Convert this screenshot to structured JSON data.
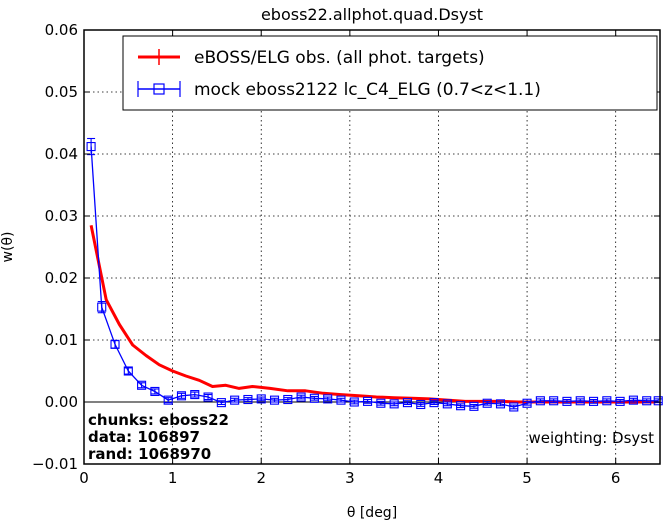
{
  "chart_data": {
    "type": "line",
    "title": "eboss22.allphot.quad.Dsyst",
    "xlabel": "θ [deg]",
    "ylabel": "w(θ)",
    "xlim": [
      0,
      6.5
    ],
    "ylim": [
      -0.01,
      0.06
    ],
    "grid": true,
    "legend_position": "top-right",
    "xticks": [
      "0",
      "1",
      "2",
      "3",
      "4",
      "5",
      "6"
    ],
    "yticks": [
      "−0.01",
      "0.00",
      "0.01",
      "0.02",
      "0.03",
      "0.04",
      "0.05",
      "0.06"
    ],
    "series": [
      {
        "name": "eBOSS/ELG obs. (all phot. targets)",
        "color": "#ff0000",
        "marker": "none",
        "x": [
          0.08,
          0.25,
          0.4,
          0.55,
          0.7,
          0.85,
          1.0,
          1.15,
          1.3,
          1.45,
          1.6,
          1.75,
          1.9,
          2.1,
          2.3,
          2.5,
          2.7,
          2.9,
          3.1,
          3.3,
          3.5,
          3.7,
          3.9,
          4.1,
          4.3,
          4.5,
          4.7,
          4.9,
          5.1,
          5.3,
          5.5,
          5.7,
          5.9,
          6.1,
          6.3,
          6.45
        ],
        "y": [
          0.0285,
          0.0165,
          0.0125,
          0.0092,
          0.0075,
          0.006,
          0.005,
          0.0042,
          0.0035,
          0.0025,
          0.0027,
          0.0022,
          0.0025,
          0.0022,
          0.0018,
          0.0018,
          0.0014,
          0.0012,
          0.001,
          0.0008,
          0.0007,
          0.0006,
          0.0005,
          0.0003,
          0.0001,
          0.0001,
          0.0001,
          0.0,
          0.0,
          0.0,
          0.0,
          0.0,
          0.0,
          0.0,
          0.0,
          0.0
        ]
      },
      {
        "name": "mock eboss2122 lc_C4_ELG (0.7<z<1.1)",
        "color": "#0000ff",
        "marker": "square",
        "x": [
          0.08,
          0.2,
          0.35,
          0.5,
          0.65,
          0.8,
          0.95,
          1.1,
          1.25,
          1.4,
          1.55,
          1.7,
          1.85,
          2.0,
          2.15,
          2.3,
          2.45,
          2.6,
          2.75,
          2.9,
          3.05,
          3.2,
          3.35,
          3.5,
          3.65,
          3.8,
          3.95,
          4.1,
          4.25,
          4.4,
          4.55,
          4.7,
          4.85,
          5.0,
          5.15,
          5.3,
          5.45,
          5.6,
          5.75,
          5.9,
          6.05,
          6.2,
          6.35,
          6.48
        ],
        "y": [
          0.0412,
          0.0153,
          0.0093,
          0.005,
          0.0027,
          0.0017,
          0.0003,
          0.001,
          0.0012,
          0.0008,
          -0.0001,
          0.0003,
          0.0004,
          0.0005,
          0.0003,
          0.0004,
          0.0008,
          0.0006,
          0.0005,
          0.0003,
          0.0,
          0.0001,
          -0.0002,
          -0.0003,
          -0.0001,
          -0.0004,
          -0.0001,
          -0.0003,
          -0.0006,
          -0.0007,
          -0.0002,
          -0.0003,
          -0.0008,
          -0.0002,
          0.0002,
          0.0002,
          0.0001,
          0.0002,
          0.0001,
          0.0002,
          0.0001,
          0.0003,
          0.0002,
          0.0002
        ],
        "yerr": [
          0.0013,
          0.0009,
          0.0006,
          0.0005,
          0.0004,
          0.0004,
          0.0004,
          0.0004,
          0.0004,
          0.0004,
          0.0003,
          0.0003,
          0.0003,
          0.0003,
          0.0003,
          0.0003,
          0.0003,
          0.0003,
          0.0003,
          0.0003,
          0.0003,
          0.0003,
          0.0003,
          0.0003,
          0.0003,
          0.0003,
          0.0003,
          0.0003,
          0.0003,
          0.0003,
          0.0003,
          0.0003,
          0.0003,
          0.0003,
          0.0003,
          0.0003,
          0.0003,
          0.0003,
          0.0003,
          0.0003,
          0.0003,
          0.0003,
          0.0003,
          0.0003
        ]
      }
    ],
    "annotations": {
      "chunks": "chunks: eboss22",
      "data": "data: 106897",
      "rand": "rand: 1068970",
      "weighting": "weighting: Dsyst"
    }
  }
}
